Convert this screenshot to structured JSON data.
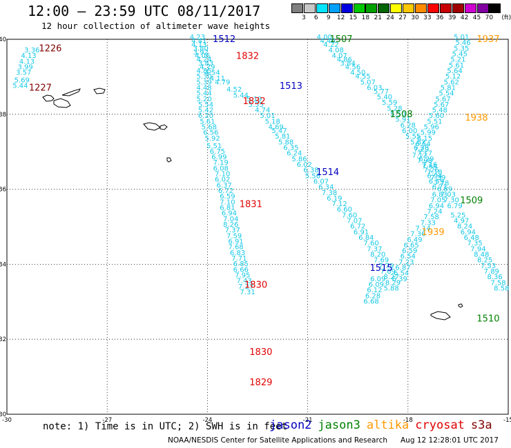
{
  "header": {
    "title": "12:00 – 23:59 UTC 08/11/2017",
    "subtitle": "12 hour collection of altimeter wave heights"
  },
  "colorbar": {
    "unit": "(ft)",
    "labels": [
      "3",
      "6",
      "9",
      "12",
      "15",
      "18",
      "21",
      "24",
      "27",
      "30",
      "33",
      "36",
      "39",
      "42",
      "45",
      "70"
    ],
    "colors": [
      "#808080",
      "#c8c8c8",
      "#00e5ff",
      "#00a0ff",
      "#0000e0",
      "#00c800",
      "#00a000",
      "#006400",
      "#ffff00",
      "#ffc800",
      "#ff8c00",
      "#ff0000",
      "#c80000",
      "#a00000",
      "#d000d0",
      "#8000a0",
      "#000000"
    ]
  },
  "axes": {
    "lon_ticks": [
      "-30",
      "-27",
      "-24",
      "-21",
      "-18",
      "-15"
    ],
    "lat_ticks": [
      "40",
      "38",
      "36",
      "34",
      "32",
      "30"
    ],
    "lon": [
      -30,
      -15
    ],
    "lat": [
      30,
      40
    ]
  },
  "tracks": [
    {
      "points": [
        [
          -24.3,
          40.0,
          "4.23"
        ],
        [
          -24.25,
          39.9,
          "4.41"
        ],
        [
          -24.25,
          39.8,
          "4.13"
        ],
        [
          -24.2,
          39.7,
          "3.80"
        ],
        [
          -24.2,
          39.6,
          "3.92"
        ],
        [
          -24.15,
          39.5,
          "4.06"
        ],
        [
          -24.1,
          39.4,
          "4.24"
        ],
        [
          -24.05,
          39.3,
          "3.83"
        ],
        [
          -24.0,
          39.2,
          "4.79"
        ],
        [
          -24.1,
          39.1,
          "4.85"
        ],
        [
          -23.85,
          39.05,
          "4.54"
        ],
        [
          -24.1,
          38.95,
          "5.30"
        ],
        [
          -23.7,
          38.9,
          "4.11"
        ],
        [
          -24.1,
          38.8,
          "5.39"
        ],
        [
          -23.55,
          38.8,
          "4.79"
        ],
        [
          -24.1,
          38.65,
          "4.48"
        ],
        [
          -23.2,
          38.6,
          "4.52"
        ],
        [
          -24.1,
          38.5,
          "5.44"
        ],
        [
          -23.0,
          38.45,
          "5.44"
        ],
        [
          -24.1,
          38.35,
          "5.20"
        ],
        [
          -22.6,
          38.35,
          "5.19"
        ],
        [
          -24.05,
          38.2,
          "5.54"
        ],
        [
          -22.55,
          38.2,
          "5.55"
        ],
        [
          -24.05,
          38.05,
          "5.42"
        ],
        [
          -22.35,
          38.05,
          "4.74"
        ],
        [
          -24.05,
          37.9,
          "6.20"
        ],
        [
          -22.2,
          37.9,
          "5.01"
        ],
        [
          -24.0,
          37.75,
          "5.61"
        ],
        [
          -22.05,
          37.75,
          "5.18"
        ],
        [
          -23.95,
          37.6,
          "5.68"
        ],
        [
          -21.95,
          37.6,
          "4.69"
        ],
        [
          -23.9,
          37.45,
          "6.56"
        ],
        [
          -21.85,
          37.5,
          "5.47"
        ],
        [
          -23.85,
          37.3,
          "5.92"
        ],
        [
          -21.75,
          37.35,
          "5.81"
        ],
        [
          -23.8,
          37.1,
          "5.51"
        ],
        [
          -21.65,
          37.2,
          "5.88"
        ],
        [
          -23.7,
          36.95,
          "6.75"
        ],
        [
          -21.5,
          37.05,
          "6.35"
        ],
        [
          -23.65,
          36.8,
          "6.99"
        ],
        [
          -21.4,
          36.9,
          "6.24"
        ],
        [
          -23.6,
          36.65,
          "7.19"
        ],
        [
          -21.25,
          36.75,
          "5.86"
        ],
        [
          -23.6,
          36.5,
          "6.08"
        ],
        [
          -21.1,
          36.6,
          "6.02"
        ],
        [
          -23.55,
          36.35,
          "7.10"
        ],
        [
          -20.9,
          36.45,
          "6.38"
        ],
        [
          -23.55,
          36.2,
          "6.02"
        ],
        [
          -20.85,
          36.3,
          "5.56"
        ],
        [
          -23.5,
          36.05,
          "6.37"
        ],
        [
          -20.6,
          36.15,
          "6.07"
        ],
        [
          -23.45,
          35.9,
          "6.72"
        ],
        [
          -20.45,
          36.0,
          "6.34"
        ],
        [
          -23.4,
          35.75,
          "6.59"
        ],
        [
          -20.35,
          35.85,
          "7.38"
        ],
        [
          -23.4,
          35.6,
          "7.10"
        ],
        [
          -20.2,
          35.7,
          "6.19"
        ],
        [
          -23.4,
          35.45,
          "6.81"
        ],
        [
          -20.05,
          35.55,
          "7.12"
        ],
        [
          -23.35,
          35.3,
          "6.94"
        ],
        [
          -19.9,
          35.4,
          "6.60"
        ],
        [
          -23.3,
          35.15,
          "7.04"
        ],
        [
          -19.75,
          35.25,
          "7.60"
        ],
        [
          -23.3,
          35.0,
          "8.26"
        ],
        [
          -19.6,
          35.1,
          "7.07"
        ],
        [
          -23.25,
          34.85,
          "7.37"
        ],
        [
          -19.5,
          34.95,
          "6.72"
        ],
        [
          -23.2,
          34.7,
          "7.59"
        ],
        [
          -19.4,
          34.8,
          "6.91"
        ],
        [
          -23.15,
          34.55,
          "6.91"
        ],
        [
          -19.25,
          34.65,
          "6.84"
        ],
        [
          -23.15,
          34.4,
          "7.68"
        ],
        [
          -19.1,
          34.5,
          "7.60"
        ],
        [
          -23.1,
          34.25,
          "6.83"
        ],
        [
          -19.0,
          34.35,
          "7.37"
        ],
        [
          -23.05,
          34.1,
          "7.71"
        ],
        [
          -18.9,
          34.2,
          "8.20"
        ],
        [
          -23.0,
          33.95,
          "6.85"
        ],
        [
          -18.8,
          34.05,
          "7.69"
        ],
        [
          -23.0,
          33.8,
          "6.66"
        ],
        [
          -18.65,
          33.9,
          "7.79"
        ],
        [
          -22.95,
          33.65,
          "7.95"
        ],
        [
          -18.6,
          33.75,
          "7.69"
        ],
        [
          -22.9,
          33.5,
          "7.43"
        ],
        [
          -18.5,
          33.6,
          "8.27"
        ],
        [
          -22.85,
          33.35,
          "7.27"
        ],
        [
          -18.45,
          33.45,
          "8.29"
        ],
        [
          -22.8,
          33.2,
          "7.31"
        ],
        [
          -18.5,
          33.3,
          "5.88"
        ]
      ]
    },
    {
      "points": [
        [
          -20.5,
          40.0,
          "4.00"
        ],
        [
          -20.4,
          39.9,
          "4.40"
        ],
        [
          -20.3,
          39.8,
          "4.22"
        ],
        [
          -20.15,
          39.65,
          "4.08"
        ],
        [
          -20.05,
          39.5,
          "4.07"
        ],
        [
          -19.9,
          39.4,
          "4.86"
        ],
        [
          -19.8,
          39.3,
          "3.84"
        ],
        [
          -19.65,
          39.2,
          "4.56"
        ],
        [
          -19.5,
          39.05,
          "4.50"
        ],
        [
          -19.35,
          38.95,
          "4.55"
        ],
        [
          -19.2,
          38.8,
          "5.07"
        ],
        [
          -19.0,
          38.65,
          "6.03"
        ],
        [
          -18.8,
          38.55,
          "5.77"
        ],
        [
          -18.7,
          38.4,
          "5.40"
        ],
        [
          -18.55,
          38.25,
          "5.59"
        ],
        [
          -18.4,
          38.1,
          "5.28"
        ],
        [
          -18.3,
          37.95,
          "5.50"
        ],
        [
          -18.15,
          37.8,
          "5.91"
        ],
        [
          -18.0,
          37.65,
          "6.28"
        ],
        [
          -17.95,
          37.5,
          "6.00"
        ],
        [
          -17.85,
          37.35,
          "5.55"
        ],
        [
          -17.7,
          37.2,
          "5.82"
        ],
        [
          -17.6,
          37.05,
          "6.28"
        ],
        [
          -17.5,
          36.9,
          "7.17"
        ],
        [
          -17.45,
          36.75,
          "6.29"
        ],
        [
          -17.35,
          36.6,
          "7.16"
        ],
        [
          -17.3,
          36.45,
          "7.26"
        ],
        [
          -17.2,
          36.3,
          "6.94"
        ],
        [
          -17.15,
          36.15,
          "6.59"
        ],
        [
          -17.05,
          36.0,
          "6.71"
        ],
        [
          -17.05,
          35.8,
          "6.83"
        ],
        [
          -17.1,
          35.65,
          "7.05"
        ],
        [
          -17.15,
          35.5,
          "6.94"
        ],
        [
          -17.2,
          35.35,
          "7.24"
        ],
        [
          -17.3,
          35.2,
          "7.58"
        ],
        [
          -17.4,
          35.05,
          "7.33"
        ],
        [
          -17.55,
          34.9,
          "7.14"
        ],
        [
          -17.7,
          34.75,
          "7.36"
        ],
        [
          -17.8,
          34.6,
          "6.49"
        ],
        [
          -17.9,
          34.45,
          "6.65"
        ],
        [
          -17.95,
          34.3,
          "6.59"
        ],
        [
          -18.0,
          34.15,
          "6.54"
        ],
        [
          -18.05,
          34.0,
          "7.23"
        ],
        [
          -18.15,
          33.85,
          "6.87"
        ],
        [
          -18.2,
          33.7,
          "6.54"
        ],
        [
          -18.25,
          33.55,
          "6.39"
        ],
        [
          -18.9,
          33.55,
          "6.09"
        ],
        [
          -18.95,
          33.4,
          "6.09"
        ],
        [
          -19.0,
          33.25,
          "6.12"
        ],
        [
          -19.05,
          33.1,
          "6.28"
        ],
        [
          -19.1,
          32.95,
          "6.68"
        ]
      ]
    },
    {
      "points": [
        [
          -16.4,
          40.0,
          "5.01"
        ],
        [
          -16.35,
          39.85,
          "5.46"
        ],
        [
          -16.4,
          39.7,
          "5.35"
        ],
        [
          -16.45,
          39.55,
          "5.45"
        ],
        [
          -16.5,
          39.4,
          "5.21"
        ],
        [
          -16.55,
          39.25,
          "5.61"
        ],
        [
          -16.6,
          39.1,
          "5.64"
        ],
        [
          -16.65,
          38.95,
          "5.12"
        ],
        [
          -16.7,
          38.8,
          "5.62"
        ],
        [
          -16.8,
          38.65,
          "5.81"
        ],
        [
          -16.85,
          38.5,
          "5.54"
        ],
        [
          -16.95,
          38.35,
          "5.67"
        ],
        [
          -17.0,
          38.2,
          "5.67"
        ],
        [
          -17.05,
          38.05,
          "5.48"
        ],
        [
          -17.15,
          37.9,
          "5.60"
        ],
        [
          -17.2,
          37.75,
          "5.51"
        ],
        [
          -17.3,
          37.6,
          "5.96"
        ],
        [
          -17.4,
          37.45,
          "5.99"
        ],
        [
          -17.5,
          37.3,
          "6.15"
        ],
        [
          -17.55,
          37.15,
          "6.54"
        ],
        [
          -17.6,
          37.0,
          "7.29"
        ],
        [
          -17.65,
          36.85,
          "7.12"
        ],
        [
          -17.5,
          36.7,
          "7.98"
        ],
        [
          -17.35,
          36.55,
          "7.64"
        ],
        [
          -17.2,
          36.4,
          "7.18"
        ],
        [
          -17.1,
          36.25,
          "7.39"
        ],
        [
          -17.0,
          36.1,
          "7.78"
        ],
        [
          -16.9,
          35.95,
          "6.89"
        ],
        [
          -16.8,
          35.8,
          "7.03"
        ],
        [
          -16.7,
          35.65,
          "7.30"
        ],
        [
          -16.6,
          35.5,
          "6.79"
        ],
        [
          -16.5,
          35.25,
          "5.25"
        ],
        [
          -16.4,
          35.1,
          "4.97"
        ],
        [
          -16.3,
          34.95,
          "8.24"
        ],
        [
          -16.2,
          34.8,
          "6.94"
        ],
        [
          -16.1,
          34.65,
          "6.48"
        ],
        [
          -16.0,
          34.5,
          "7.35"
        ],
        [
          -15.9,
          34.35,
          "7.94"
        ],
        [
          -15.8,
          34.2,
          "8.48"
        ],
        [
          -15.7,
          34.05,
          "8.25"
        ],
        [
          -15.6,
          33.9,
          "7.53"
        ],
        [
          -15.5,
          33.75,
          "7.89"
        ],
        [
          -15.4,
          33.6,
          "8.36"
        ],
        [
          -15.3,
          33.45,
          "7.58"
        ],
        [
          -15.2,
          33.3,
          "8.58"
        ]
      ]
    },
    {
      "points": [
        [
          -29.25,
          39.65,
          "3.36"
        ],
        [
          -29.35,
          39.5,
          "4.13"
        ],
        [
          -29.4,
          39.35,
          "4.13"
        ],
        [
          -29.45,
          39.2,
          "3.99"
        ],
        [
          -29.5,
          39.05,
          "3.57"
        ],
        [
          -29.55,
          38.85,
          "5.69"
        ],
        [
          -29.6,
          38.7,
          "5.44"
        ]
      ]
    }
  ],
  "passes": [
    {
      "label": "1226",
      "lon": -28.7,
      "lat": 39.75,
      "color": "#800000"
    },
    {
      "label": "1227",
      "lon": -29.0,
      "lat": 38.7,
      "color": "#800000"
    },
    {
      "label": "1512",
      "lon": -23.5,
      "lat": 40.0,
      "color": "#0000c0"
    },
    {
      "label": "1507",
      "lon": -20.0,
      "lat": 40.0,
      "color": "#008000"
    },
    {
      "label": "1937",
      "lon": -15.6,
      "lat": 40.0,
      "color": "#ff9900"
    },
    {
      "label": "1832",
      "lon": -22.8,
      "lat": 39.55,
      "color": "#e00000"
    },
    {
      "label": "1513",
      "lon": -21.5,
      "lat": 38.75,
      "color": "#0000c0"
    },
    {
      "label": "1832",
      "lon": -22.6,
      "lat": 38.35,
      "color": "#e00000"
    },
    {
      "label": "1508",
      "lon": -18.2,
      "lat": 38.0,
      "color": "#008000"
    },
    {
      "label": "1938",
      "lon": -15.95,
      "lat": 37.9,
      "color": "#ff9900"
    },
    {
      "label": "1514",
      "lon": -20.4,
      "lat": 36.45,
      "color": "#0000c0"
    },
    {
      "label": "1831",
      "lon": -22.7,
      "lat": 35.6,
      "color": "#e00000"
    },
    {
      "label": "1509",
      "lon": -16.1,
      "lat": 35.7,
      "color": "#008000"
    },
    {
      "label": "1939",
      "lon": -17.25,
      "lat": 34.85,
      "color": "#ff9900"
    },
    {
      "label": "1515",
      "lon": -18.8,
      "lat": 33.9,
      "color": "#0000c0"
    },
    {
      "label": "1830",
      "lon": -22.55,
      "lat": 33.45,
      "color": "#e00000"
    },
    {
      "label": "1510",
      "lon": -15.6,
      "lat": 32.55,
      "color": "#008000"
    },
    {
      "label": "1830",
      "lon": -22.4,
      "lat": 31.65,
      "color": "#e00000"
    },
    {
      "label": "1829",
      "lon": -22.4,
      "lat": 30.85,
      "color": "#e00000"
    }
  ],
  "footer": {
    "note": "note: 1) Time is in UTC; 2) SWH is in feet",
    "legend": [
      {
        "name": "jason2",
        "color": "#0000c0"
      },
      {
        "name": "jason3",
        "color": "#008000"
      },
      {
        "name": "altika",
        "color": "#ff9900"
      },
      {
        "name": "cryosat",
        "color": "#e00000"
      },
      {
        "name": "s3a",
        "color": "#800000"
      }
    ],
    "credit": "NOAA/NESDIS Center for Satellite Applications and Research",
    "timestamp": "Aug 12 12:28:01 UTC 2017"
  }
}
